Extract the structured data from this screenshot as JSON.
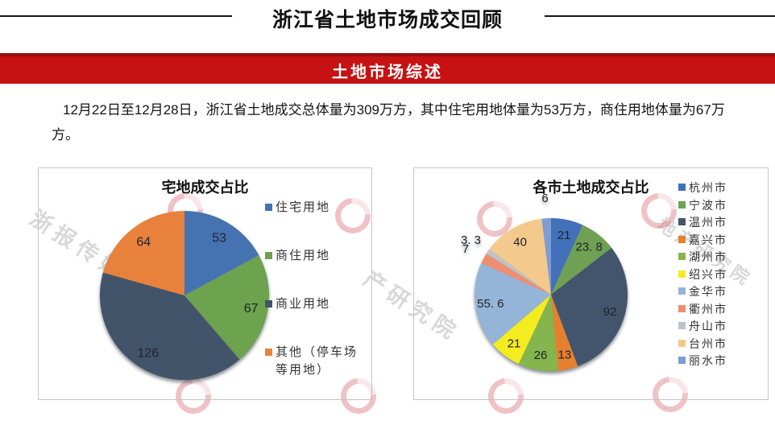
{
  "header": {
    "title": "浙江省土地市场成交回顾"
  },
  "section": {
    "banner": "土地市场综述",
    "paragraph": "12月22日至12月28日，浙江省土地成交总体量为309万方，其中住宅用地体量为53万方，商住用地体量为67万方。"
  },
  "watermark": {
    "brand_text": "浙报传媒地产研究院",
    "fragments": [
      "浙报传媒地产研究院",
      "产研究院",
      "地产研究院"
    ]
  },
  "theme": {
    "banner_red": "#c61212",
    "rule_black": "#161616",
    "watermark_pink": "#d66670"
  },
  "chart_data": [
    {
      "type": "pie",
      "title": "宅地成交占比",
      "legend_position": "right",
      "series": [
        {
          "label": "住宅用地",
          "value": 53,
          "value_label": "53",
          "color": "#4573b2"
        },
        {
          "label": "商住用地",
          "value": 67,
          "value_label": "67",
          "color": "#6da24e"
        },
        {
          "label": "商业用地",
          "value": 126,
          "value_label": "126",
          "color": "#42546a"
        },
        {
          "label": "其他（停车场等用地）",
          "value": 64,
          "value_label": "64",
          "color": "#e8813b"
        }
      ]
    },
    {
      "type": "pie",
      "title": "各市土地成交占比",
      "legend_position": "right",
      "series": [
        {
          "label": "杭州市",
          "value": 21,
          "value_label": "21",
          "color": "#4271ba"
        },
        {
          "label": "宁波市",
          "value": 23.8,
          "value_label": "23. 8",
          "color": "#6fa053"
        },
        {
          "label": "温州市",
          "value": 92,
          "value_label": "92",
          "color": "#42556c"
        },
        {
          "label": "嘉兴市",
          "value": 13,
          "value_label": "13",
          "color": "#e5802f"
        },
        {
          "label": "湖州市",
          "value": 26,
          "value_label": "26",
          "color": "#85b54d"
        },
        {
          "label": "绍兴市",
          "value": 21,
          "value_label": "21",
          "color": "#f4eb21"
        },
        {
          "label": "金华市",
          "value": 55.6,
          "value_label": "55. 6",
          "color": "#95b5d8"
        },
        {
          "label": "衢州市",
          "value": 7,
          "value_label": "7",
          "color": "#ee8f72"
        },
        {
          "label": "舟山市",
          "value": 3.3,
          "value_label": "3. 3",
          "color": "#bdc3cb"
        },
        {
          "label": "台州市",
          "value": 40,
          "value_label": "40",
          "color": "#f4c98c"
        },
        {
          "label": "丽水市",
          "value": 6,
          "value_label": "6",
          "color": "#7f9dd3"
        }
      ]
    }
  ]
}
